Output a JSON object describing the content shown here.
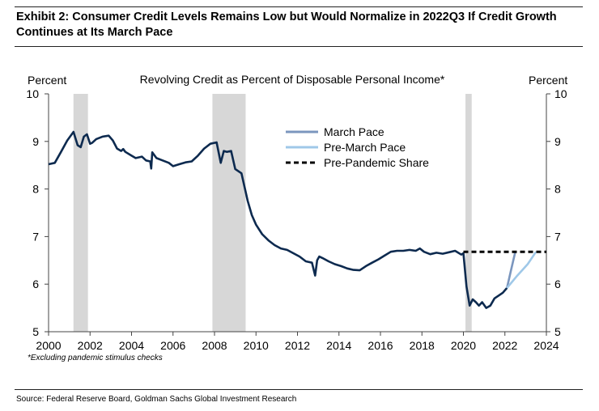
{
  "header": {
    "title": "Exhibit 2: Consumer Credit Levels Remains Low but Would Normalize in 2022Q3 If Credit Growth Continues at Its March Pace"
  },
  "footnote": "*Excluding pandemic stimulus checks",
  "source": "Source: Federal Reserve Board, Goldman Sachs Global Investment Research",
  "chart_data": {
    "type": "line",
    "title": "Revolving Credit as Percent of Disposable Personal Income*",
    "ylabel_left": "Percent",
    "ylabel_right": "Percent",
    "xlim": [
      2000,
      2024
    ],
    "ylim": [
      5,
      10
    ],
    "x_ticks": [
      "2000",
      "2002",
      "2004",
      "2006",
      "2008",
      "2010",
      "2012",
      "2014",
      "2016",
      "2018",
      "2020",
      "2022",
      "2024"
    ],
    "y_ticks": [
      "5",
      "6",
      "7",
      "8",
      "9",
      "10"
    ],
    "grid": false,
    "legend_position": "top-right",
    "recessions": [
      [
        2001.2,
        2001.9
      ],
      [
        2007.9,
        2009.5
      ],
      [
        2020.1,
        2020.4
      ]
    ],
    "series": [
      {
        "name": "",
        "color": "#0d2a4f",
        "x": [
          2000.0,
          2000.3,
          2000.6,
          2000.9,
          2001.2,
          2001.4,
          2001.55,
          2001.7,
          2001.85,
          2002.0,
          2002.1,
          2002.3,
          2002.6,
          2002.9,
          2003.1,
          2003.3,
          2003.5,
          2003.6,
          2003.7,
          2004.0,
          2004.2,
          2004.5,
          2004.7,
          2004.9,
          2004.95,
          2005.0,
          2005.2,
          2005.5,
          2005.8,
          2006.0,
          2006.3,
          2006.6,
          2006.9,
          2007.2,
          2007.5,
          2007.8,
          2008.1,
          2008.3,
          2008.45,
          2008.6,
          2008.8,
          2009.0,
          2009.3,
          2009.6,
          2009.8,
          2010.0,
          2010.3,
          2010.6,
          2010.9,
          2011.2,
          2011.5,
          2011.8,
          2012.1,
          2012.4,
          2012.7,
          2012.85,
          2012.95,
          2013.05,
          2013.2,
          2013.5,
          2013.8,
          2014.1,
          2014.4,
          2014.7,
          2015.0,
          2015.3,
          2015.6,
          2015.9,
          2016.2,
          2016.5,
          2016.8,
          2017.1,
          2017.4,
          2017.7,
          2017.9,
          2018.1,
          2018.4,
          2018.7,
          2019.0,
          2019.3,
          2019.6,
          2019.9,
          2020.0,
          2020.15,
          2020.3,
          2020.45,
          2020.6,
          2020.75,
          2020.9,
          2021.1,
          2021.3,
          2021.5,
          2021.7,
          2021.9,
          2022.1
        ],
        "values": [
          8.52,
          8.55,
          8.78,
          9.02,
          9.2,
          8.92,
          8.88,
          9.1,
          9.15,
          8.95,
          8.97,
          9.05,
          9.1,
          9.12,
          9.02,
          8.85,
          8.8,
          8.84,
          8.78,
          8.7,
          8.65,
          8.68,
          8.6,
          8.58,
          8.43,
          8.77,
          8.65,
          8.6,
          8.55,
          8.48,
          8.52,
          8.56,
          8.58,
          8.7,
          8.85,
          8.95,
          8.98,
          8.55,
          8.8,
          8.78,
          8.8,
          8.42,
          8.33,
          7.75,
          7.45,
          7.25,
          7.05,
          6.92,
          6.82,
          6.75,
          6.72,
          6.65,
          6.58,
          6.48,
          6.45,
          6.18,
          6.5,
          6.58,
          6.55,
          6.48,
          6.42,
          6.38,
          6.33,
          6.3,
          6.29,
          6.38,
          6.45,
          6.52,
          6.6,
          6.68,
          6.7,
          6.7,
          6.72,
          6.7,
          6.75,
          6.68,
          6.63,
          6.66,
          6.64,
          6.67,
          6.7,
          6.62,
          6.65,
          5.95,
          5.55,
          5.68,
          5.62,
          5.55,
          5.62,
          5.5,
          5.55,
          5.7,
          5.76,
          5.82,
          5.92
        ]
      },
      {
        "name": "March Pace",
        "color": "#7b96be",
        "x": [
          2022.1,
          2022.3,
          2022.5
        ],
        "values": [
          5.92,
          6.3,
          6.68
        ]
      },
      {
        "name": "Pre-March Pace",
        "color": "#9fc8e8",
        "x": [
          2022.1,
          2022.6,
          2023.1,
          2023.5
        ],
        "values": [
          5.92,
          6.18,
          6.42,
          6.68
        ]
      },
      {
        "name": "Pre-Pandemic Share",
        "color": "#000000",
        "dashed": true,
        "x": [
          2020.0,
          2024.0
        ],
        "values": [
          6.68,
          6.68
        ]
      }
    ]
  }
}
